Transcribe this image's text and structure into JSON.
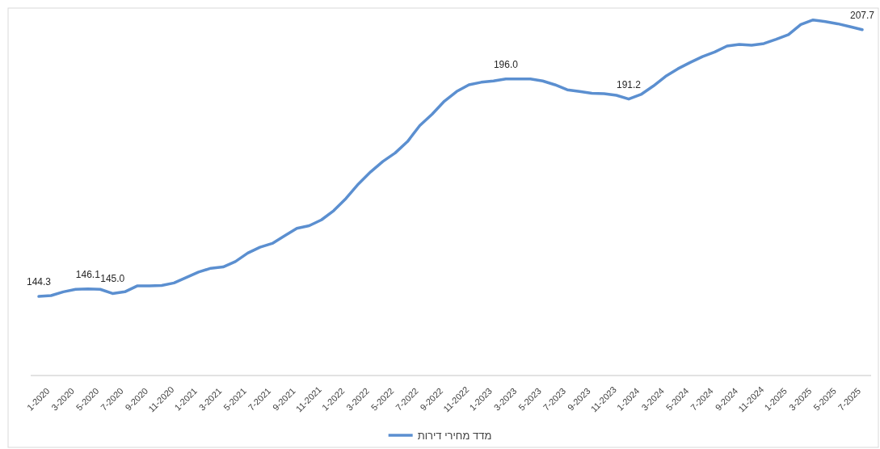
{
  "chart_data": {
    "type": "line",
    "categories": [
      "1-2020",
      null,
      "3-2020",
      null,
      "5-2020",
      null,
      "7-2020",
      null,
      "9-2020",
      null,
      "11-2020",
      null,
      "1-2021",
      null,
      "3-2021",
      null,
      "5-2021",
      null,
      "7-2021",
      null,
      "9-2021",
      null,
      "11-2021",
      null,
      "1-2022",
      null,
      "3-2022",
      null,
      "5-2022",
      null,
      "7-2022",
      null,
      "9-2022",
      null,
      "11-2022",
      null,
      "1-2023",
      null,
      "3-2023",
      null,
      "5-2023",
      null,
      "7-2023",
      null,
      "9-2023",
      null,
      "11-2023",
      null,
      "1-2024",
      null,
      "3-2024",
      null,
      "5-2024",
      null,
      "7-2024",
      null,
      "9-2024",
      null,
      "11-2024",
      null,
      "1-2025",
      null,
      "3-2025",
      null,
      "5-2025",
      null,
      "7-2025",
      null
    ],
    "series": [
      {
        "name": "מדד מחירי דירות",
        "color": "#5b8fd0",
        "values": [
          144.3,
          144.5,
          145.4,
          146.0,
          146.1,
          146.0,
          145.0,
          145.4,
          146.8,
          146.8,
          146.9,
          147.5,
          148.8,
          150.1,
          151.0,
          151.3,
          152.6,
          154.6,
          156.0,
          156.9,
          158.7,
          160.5,
          161.1,
          162.5,
          164.7,
          167.6,
          171.0,
          173.9,
          176.4,
          178.4,
          181.1,
          184.9,
          187.6,
          190.7,
          193.0,
          194.6,
          195.2,
          195.5,
          196.0,
          196.0,
          196.0,
          195.5,
          194.6,
          193.4,
          193.0,
          192.6,
          192.5,
          192.1,
          191.2,
          192.3,
          194.3,
          196.6,
          198.4,
          199.9,
          201.3,
          202.4,
          203.8,
          204.2,
          204.0,
          204.4,
          205.4,
          206.5,
          208.9,
          210.0,
          209.6,
          209.1,
          208.4,
          207.7
        ],
        "value_labels": [
          "144.3",
          null,
          null,
          null,
          "146.1",
          null,
          "145.0",
          null,
          null,
          null,
          null,
          null,
          null,
          null,
          null,
          null,
          null,
          null,
          null,
          null,
          null,
          null,
          null,
          null,
          null,
          null,
          null,
          null,
          null,
          null,
          null,
          null,
          null,
          null,
          null,
          null,
          null,
          null,
          "196.0",
          null,
          null,
          null,
          null,
          null,
          null,
          null,
          null,
          null,
          "191.2",
          null,
          null,
          null,
          null,
          null,
          null,
          null,
          null,
          null,
          null,
          null,
          null,
          null,
          null,
          null,
          null,
          null,
          null,
          "207.7"
        ]
      }
    ],
    "tick_labels": "x",
    "legend": "bottom",
    "marker": "none",
    "line_style": "solid"
  }
}
